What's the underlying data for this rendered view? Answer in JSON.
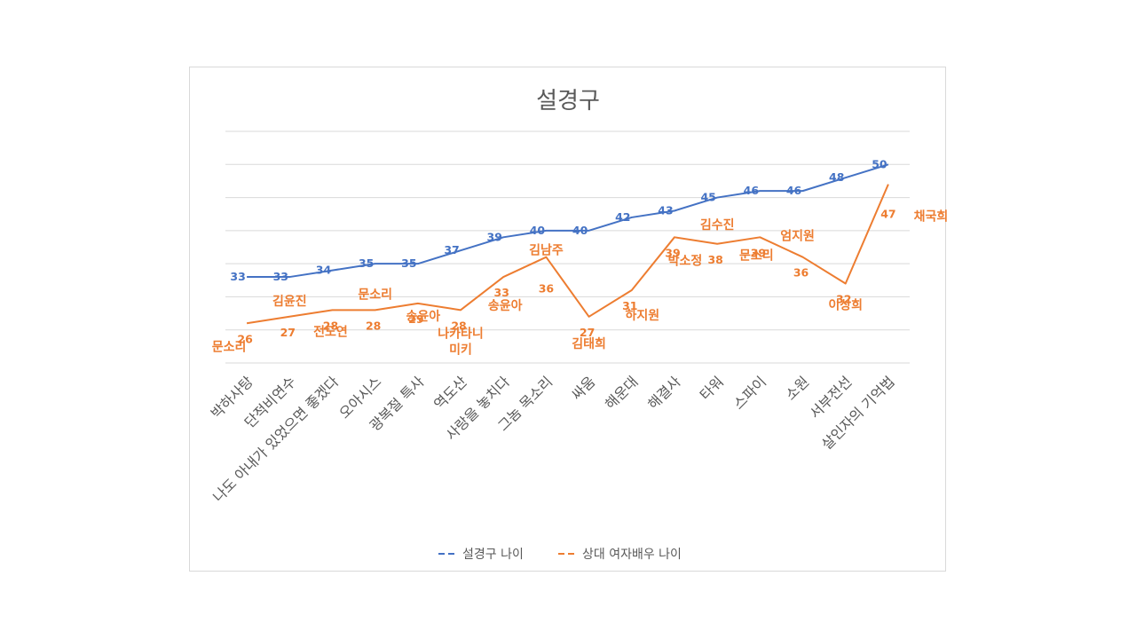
{
  "chart_data": {
    "type": "line",
    "title": "설경구",
    "categories": [
      "박하사탕",
      "단적비연수",
      "나도 아내가 있었으면 좋겠다",
      "오아시스",
      "광복절 특사",
      "역도산",
      "사랑을 놓치다",
      "그놈 목소리",
      "싸움",
      "해운대",
      "해결사",
      "타워",
      "스파이",
      "소원",
      "서부전선",
      "살인자의 기억법"
    ],
    "series": [
      {
        "name": "설경구 나이",
        "color": "#4472c4",
        "values": [
          33,
          33,
          34,
          35,
          35,
          37,
          39,
          40,
          40,
          42,
          43,
          45,
          46,
          46,
          48,
          50
        ]
      },
      {
        "name": "상대 여자배우 나이",
        "color": "#ed7d31",
        "values": [
          26,
          27,
          28,
          28,
          29,
          28,
          33,
          36,
          27,
          31,
          39,
          38,
          39,
          36,
          32,
          47
        ],
        "point_labels": [
          "문소리",
          "김윤진",
          "전도연",
          "문소리",
          "송윤아",
          "나카타니 미키",
          "송윤아",
          "김남주",
          "김태희",
          "하지원",
          "박소정",
          "김수진",
          "문소리",
          "엄지원",
          "이상희",
          "채국희"
        ]
      }
    ],
    "ylim": [
      20,
      55
    ],
    "grid": true,
    "legend_position": "bottom"
  }
}
